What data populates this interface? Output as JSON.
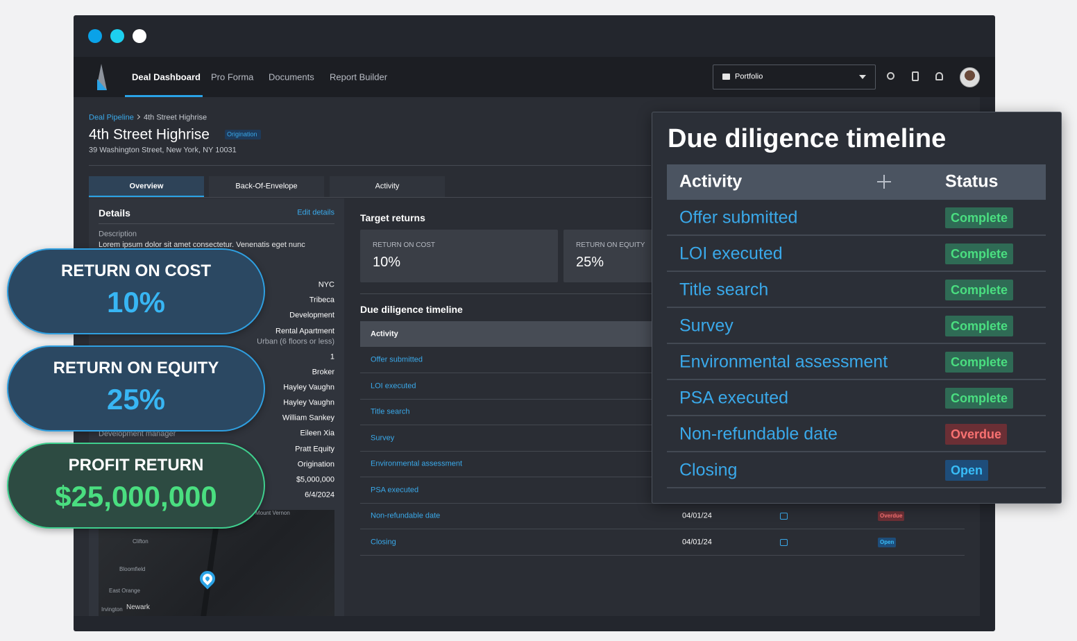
{
  "nav": {
    "items": [
      "Deal Dashboard",
      "Pro Forma",
      "Documents",
      "Report Builder"
    ],
    "portfolio": "Portfolio"
  },
  "breadcrumb": {
    "parent": "Deal Pipeline",
    "current": "4th Street Highrise"
  },
  "header": {
    "title": "4th Street Highrise",
    "badge": "Origination",
    "address": "39 Washington Street, New York, NY 10031"
  },
  "tabs": [
    "Overview",
    "Back-Of-Envelope",
    "Activity"
  ],
  "details": {
    "title": "Details",
    "edit": "Edit details",
    "description_label": "Description",
    "description": "Lorem ipsum dolor sit amet consectetur. Venenatis eget nunc euismod lorem risus eget. Proin.",
    "fields": [
      {
        "value": "NYC"
      },
      {
        "value": "Tribeca"
      },
      {
        "value": "Development"
      },
      {
        "value": "Rental Apartment",
        "note": "Urban (6 floors or less)"
      },
      {
        "value": "1"
      },
      {
        "value": "Broker"
      },
      {
        "value": "Hayley Vaughn"
      },
      {
        "value": "Hayley Vaughn"
      },
      {
        "value": "William Sankey"
      },
      {
        "label": "Development manager",
        "value": "Eileen Xia"
      },
      {
        "value": "Pratt Equity"
      },
      {
        "value": "Origination"
      },
      {
        "value": "$5,000,000"
      },
      {
        "value": "6/4/2024"
      }
    ],
    "map_labels": [
      "Mount Vernon",
      "Clifton",
      "Bloomfield",
      "East Orange",
      "Irvington",
      "Newark"
    ]
  },
  "target_returns": {
    "title": "Target returns",
    "cards": [
      {
        "label": "RETURN ON COST",
        "value": "10%"
      },
      {
        "label": "RETURN ON EQUITY",
        "value": "25%"
      }
    ]
  },
  "timeline": {
    "title": "Due diligence timeline",
    "header": "Activity",
    "rows": [
      {
        "activity": "Offer submitted"
      },
      {
        "activity": "LOI executed"
      },
      {
        "activity": "Title search"
      },
      {
        "activity": "Survey"
      },
      {
        "activity": "Environmental assessment"
      },
      {
        "activity": "PSA executed"
      },
      {
        "activity": "Non-refundable date",
        "date": "04/01/24",
        "status": "Overdue"
      },
      {
        "activity": "Closing",
        "date": "04/01/24",
        "status": "Open"
      }
    ]
  },
  "overlay": {
    "title": "Due diligence timeline",
    "headers": [
      "Activity",
      "Status"
    ],
    "rows": [
      {
        "activity": "Offer submitted",
        "status": "Complete"
      },
      {
        "activity": "LOI executed",
        "status": "Complete"
      },
      {
        "activity": "Title search",
        "status": "Complete"
      },
      {
        "activity": "Survey",
        "status": "Complete"
      },
      {
        "activity": "Environmental assessment",
        "status": "Complete"
      },
      {
        "activity": "PSA executed",
        "status": "Complete"
      },
      {
        "activity": "Non-refundable date",
        "status": "Overdue"
      },
      {
        "activity": "Closing",
        "status": "Open"
      }
    ]
  },
  "highlights": [
    {
      "label": "RETURN ON COST",
      "value": "10%"
    },
    {
      "label": "RETURN ON EQUITY",
      "value": "25%"
    },
    {
      "label": "PROFIT RETURN",
      "value": "$25,000,000"
    }
  ]
}
